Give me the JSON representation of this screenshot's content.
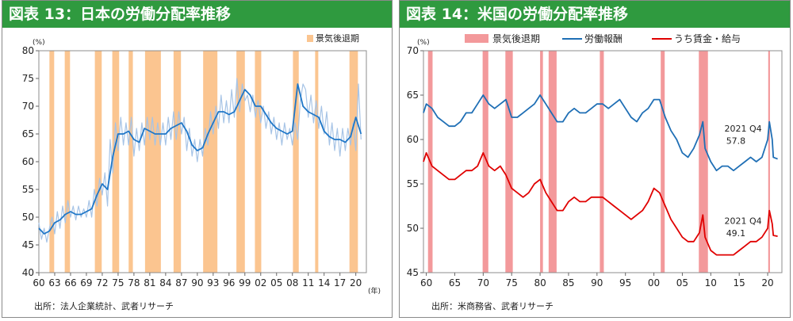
{
  "charts": {
    "left": {
      "title": "図表 13：日本の労働分配率推移",
      "source": "出所：法人企業統計、武者リサーチ",
      "chart_data": {
        "type": "line",
        "yunit": "(%)",
        "xunit": "(年)",
        "ylim": [
          40,
          80
        ],
        "yticks": [
          40,
          45,
          50,
          55,
          60,
          65,
          70,
          75,
          80
        ],
        "xlim": [
          1960,
          2022
        ],
        "xticks": [
          1960,
          1963,
          1966,
          1969,
          1972,
          1975,
          1978,
          1981,
          1984,
          1987,
          1990,
          1993,
          1996,
          1999,
          2002,
          2005,
          2008,
          2011,
          2014,
          2017,
          2020
        ],
        "xtick_labels": [
          "60",
          "63",
          "66",
          "69",
          "72",
          "75",
          "78",
          "81",
          "84",
          "87",
          "90",
          "93",
          "96",
          "99",
          "02",
          "05",
          "08",
          "11",
          "14",
          "17",
          "20"
        ],
        "recession_label": "景気後退期",
        "recessions": [
          [
            1962.0,
            1962.9
          ],
          [
            1964.9,
            1965.9
          ],
          [
            1970.6,
            1971.9
          ],
          [
            1973.9,
            1975.2
          ],
          [
            1977.0,
            1977.8
          ],
          [
            1980.1,
            1983.1
          ],
          [
            1985.5,
            1986.9
          ],
          [
            1991.1,
            1993.8
          ],
          [
            1997.4,
            1999.0
          ],
          [
            2000.9,
            2002.1
          ],
          [
            2008.1,
            2009.2
          ],
          [
            2012.3,
            2012.9
          ],
          [
            2018.8,
            2020.4
          ]
        ],
        "series": [
          {
            "name": "",
            "color": "#1f77c8",
            "x": [
              1960,
              1961,
              1962,
              1963,
              1964,
              1965,
              1966,
              1967,
              1968,
              1969,
              1970,
              1971,
              1972,
              1973,
              1974,
              1975,
              1976,
              1977,
              1978,
              1979,
              1980,
              1981,
              1982,
              1983,
              1984,
              1985,
              1986,
              1987,
              1988,
              1989,
              1990,
              1991,
              1992,
              1993,
              1994,
              1995,
              1996,
              1997,
              1998,
              1999,
              2000,
              2001,
              2002,
              2003,
              2004,
              2005,
              2006,
              2007,
              2008,
              2009,
              2010,
              2011,
              2012,
              2013,
              2014,
              2015,
              2016,
              2017,
              2018,
              2019,
              2020,
              2021
            ],
            "y": [
              48,
              47,
              47.5,
              49,
              49.5,
              50.5,
              51,
              50.5,
              50.5,
              51,
              51.5,
              54,
              56,
              55,
              61,
              65,
              65,
              65.5,
              64,
              63.5,
              66,
              65.5,
              65,
              65,
              65,
              66,
              66.5,
              67,
              65.5,
              63,
              62,
              62.5,
              65,
              67,
              69,
              69,
              68.5,
              69,
              71,
              73,
              72,
              70,
              70,
              68.5,
              67,
              66,
              65.5,
              65,
              65.5,
              74,
              70,
              69,
              68.5,
              68,
              65.5,
              64.5,
              64,
              64,
              63.5,
              64.5,
              68,
              65
            ]
          },
          {
            "name": "",
            "color": "#a7c4e6",
            "x": [
              1960,
              1960.5,
              1961,
              1961.5,
              1962,
              1962.5,
              1963,
              1963.5,
              1964,
              1964.5,
              1965,
              1965.5,
              1966,
              1966.5,
              1967,
              1967.5,
              1968,
              1968.5,
              1969,
              1969.5,
              1970,
              1970.5,
              1971,
              1971.5,
              1972,
              1972.5,
              1973,
              1973.5,
              1974,
              1974.5,
              1975,
              1975.5,
              1976,
              1976.5,
              1977,
              1977.5,
              1978,
              1978.5,
              1979,
              1979.5,
              1980,
              1980.5,
              1981,
              1981.5,
              1982,
              1982.5,
              1983,
              1983.5,
              1984,
              1984.5,
              1985,
              1985.5,
              1986,
              1986.5,
              1987,
              1987.5,
              1988,
              1988.5,
              1989,
              1989.5,
              1990,
              1990.5,
              1991,
              1991.5,
              1992,
              1992.5,
              1993,
              1993.5,
              1994,
              1994.5,
              1995,
              1995.5,
              1996,
              1996.5,
              1997,
              1997.5,
              1998,
              1998.5,
              1999,
              1999.5,
              2000,
              2000.5,
              2001,
              2001.5,
              2002,
              2002.5,
              2003,
              2003.5,
              2004,
              2004.5,
              2005,
              2005.5,
              2006,
              2006.5,
              2007,
              2007.5,
              2008,
              2008.5,
              2009,
              2009.5,
              2010,
              2010.5,
              2011,
              2011.5,
              2012,
              2012.5,
              2013,
              2013.5,
              2014,
              2014.5,
              2015,
              2015.5,
              2016,
              2016.5,
              2017,
              2017.5,
              2018,
              2018.5,
              2019,
              2019.5,
              2020,
              2020.5,
              2021
            ],
            "y": [
              49,
              46,
              48,
              45.5,
              48,
              50,
              47,
              51,
              48,
              52,
              49,
              53,
              50,
              52,
              49.5,
              52,
              50,
              51.5,
              50,
              53,
              50,
              55,
              52,
              57,
              54,
              58,
              52,
              64,
              58,
              67,
              62,
              68,
              63,
              67,
              63,
              68,
              61,
              66,
              62,
              67,
              63,
              68,
              64,
              68,
              63,
              67,
              63,
              67,
              63,
              68,
              64,
              69,
              64,
              69,
              65,
              68,
              62,
              66,
              61,
              64,
              60,
              64,
              61,
              66,
              63,
              69,
              65,
              70,
              66,
              72,
              67,
              71,
              67,
              73,
              68,
              75,
              69,
              74,
              71,
              72,
              69,
              72,
              68,
              71,
              67,
              70,
              66,
              69,
              65,
              68,
              64,
              67,
              63,
              67,
              64,
              66,
              63,
              67,
              64,
              71,
              74,
              73,
              68,
              72,
              67,
              71,
              66,
              70,
              65,
              69,
              63,
              67,
              62,
              66,
              61,
              66,
              62,
              66,
              63,
              67,
              62,
              74,
              64
            ]
          }
        ]
      }
    },
    "right": {
      "title": "図表 14：米国の労働分配率推移",
      "source": "出所：米商務省、武者リサーチ",
      "chart_data": {
        "type": "line",
        "yunit": "(%)",
        "ylim": [
          45,
          70
        ],
        "yticks": [
          45,
          50,
          55,
          60,
          65,
          70
        ],
        "xlim": [
          1959.5,
          2022.5
        ],
        "xticks": [
          1960,
          1965,
          1970,
          1975,
          1980,
          1985,
          1990,
          1995,
          2000,
          2005,
          2010,
          2015,
          2020
        ],
        "xtick_labels": [
          "60",
          "65",
          "70",
          "75",
          "80",
          "85",
          "90",
          "95",
          "00",
          "05",
          "10",
          "15",
          "20"
        ],
        "recession_label": "景気後退期",
        "recessions": [
          [
            1960.3,
            1961.1
          ],
          [
            1969.9,
            1970.9
          ],
          [
            1973.9,
            1975.2
          ],
          [
            1980.0,
            1980.5
          ],
          [
            1981.5,
            1982.9
          ],
          [
            1990.5,
            1991.2
          ],
          [
            2001.2,
            2001.9
          ],
          [
            2007.9,
            2009.5
          ],
          [
            2020.1,
            2020.4
          ]
        ],
        "series": [
          {
            "name": "労働報酬",
            "color": "#1f6fb5",
            "x": [
              1959.5,
              1960,
              1961,
              1962,
              1963,
              1964,
              1965,
              1966,
              1967,
              1968,
              1969,
              1970,
              1971,
              1972,
              1973,
              1974,
              1975,
              1976,
              1977,
              1978,
              1979,
              1980,
              1981,
              1982,
              1983,
              1984,
              1985,
              1986,
              1987,
              1988,
              1989,
              1990,
              1991,
              1992,
              1993,
              1994,
              1995,
              1996,
              1997,
              1998,
              1999,
              2000,
              2001,
              2002,
              2003,
              2004,
              2005,
              2006,
              2007,
              2008,
              2008.6,
              2009,
              2010,
              2011,
              2012,
              2013,
              2014,
              2015,
              2016,
              2017,
              2018,
              2019,
              2020,
              2020.3,
              2020.8,
              2021,
              2021.75
            ],
            "y": [
              63,
              64,
              63.5,
              62.5,
              62,
              61.5,
              61.5,
              62,
              63,
              63,
              64,
              65,
              64,
              63.5,
              64,
              64.5,
              62.5,
              62.5,
              63,
              63.5,
              64,
              65,
              64,
              63,
              62,
              62,
              63,
              63.5,
              63,
              63,
              63.5,
              64,
              64,
              63.5,
              64,
              64.5,
              63.5,
              62.5,
              62,
              63,
              63.5,
              64.5,
              64.5,
              62.5,
              61,
              60,
              58.5,
              58,
              59,
              60.5,
              62,
              59,
              57.5,
              56.5,
              57,
              57,
              56.5,
              57,
              57.5,
              58,
              57.5,
              58,
              60,
              62,
              60,
              58,
              57.8
            ]
          },
          {
            "name": "うち賃金・給与",
            "color": "#e00000",
            "x": [
              1959.5,
              1960,
              1961,
              1962,
              1963,
              1964,
              1965,
              1966,
              1967,
              1968,
              1969,
              1970,
              1971,
              1972,
              1973,
              1974,
              1975,
              1976,
              1977,
              1978,
              1979,
              1980,
              1981,
              1982,
              1983,
              1984,
              1985,
              1986,
              1987,
              1988,
              1989,
              1990,
              1991,
              1992,
              1993,
              1994,
              1995,
              1996,
              1997,
              1998,
              1999,
              2000,
              2001,
              2002,
              2003,
              2004,
              2005,
              2006,
              2007,
              2008,
              2008.6,
              2009,
              2010,
              2011,
              2012,
              2013,
              2014,
              2015,
              2016,
              2017,
              2018,
              2019,
              2020,
              2020.3,
              2020.8,
              2021,
              2021.75
            ],
            "y": [
              57.5,
              58.5,
              57,
              56.5,
              56,
              55.5,
              55.5,
              56,
              56.5,
              56.5,
              57,
              58.5,
              57,
              56.5,
              57,
              56,
              54.5,
              54,
              53.5,
              54,
              55,
              55.5,
              54,
              53,
              52,
              52,
              53,
              53.5,
              53,
              53,
              53.5,
              53.5,
              53.5,
              53,
              52.5,
              52,
              51.5,
              51,
              51.5,
              52,
              53,
              54.5,
              54,
              52.5,
              51,
              50,
              49,
              48.5,
              48.5,
              49.5,
              51.5,
              49,
              47.5,
              47,
              47,
              47,
              47,
              47.5,
              48,
              48.5,
              48.5,
              49,
              50,
              52,
              50.5,
              49.2,
              49.1
            ]
          }
        ],
        "annotations": [
          {
            "text": "2021 Q4",
            "color": "#1f6fb5",
            "x": 2012.4,
            "y": 60.9
          },
          {
            "text": "57.8",
            "color": "#1f6fb5",
            "x": 2012.7,
            "y": 59.5
          },
          {
            "text": "2021 Q4",
            "color": "#e00000",
            "x": 2012.4,
            "y": 50.5
          },
          {
            "text": "49.1",
            "color": "#e00000",
            "x": 2012.7,
            "y": 49.1
          }
        ]
      }
    }
  }
}
